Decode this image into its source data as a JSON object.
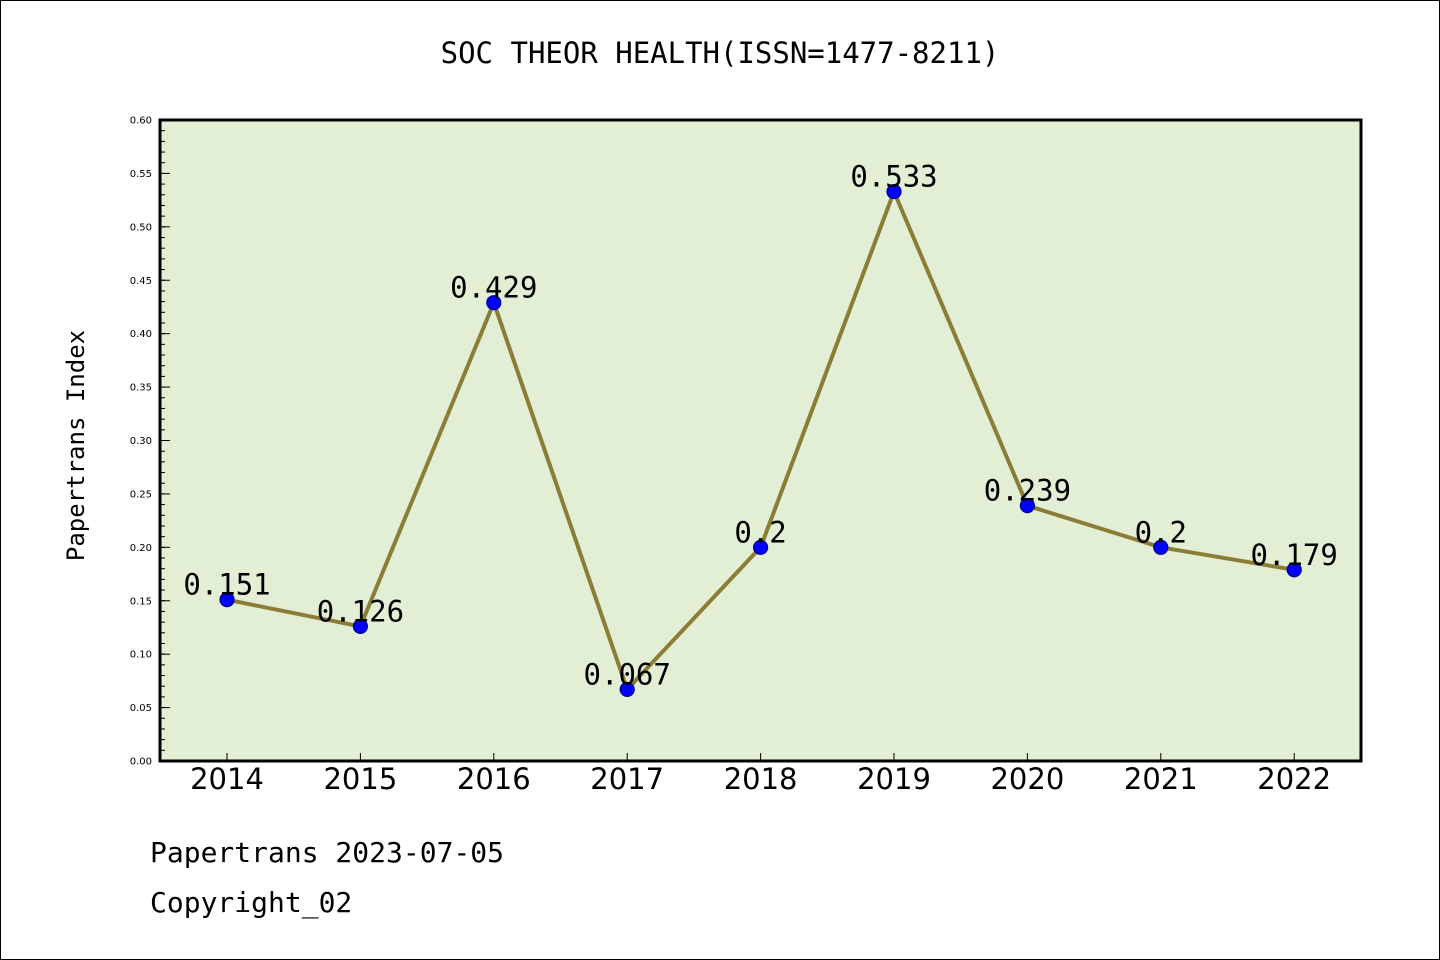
{
  "chart_data": {
    "type": "line",
    "title": "SOC THEOR HEALTH(ISSN=1477-8211)",
    "xlabel": "",
    "ylabel": "Papertrans Index",
    "categories": [
      "2014",
      "2015",
      "2016",
      "2017",
      "2018",
      "2019",
      "2020",
      "2021",
      "2022"
    ],
    "values": [
      0.151,
      0.126,
      0.429,
      0.067,
      0.2,
      0.533,
      0.239,
      0.2,
      0.179
    ],
    "data_labels": [
      "0.151",
      "0.126",
      "0.429",
      "0.067",
      "0.2",
      "0.533",
      "0.239",
      "0.2",
      "0.179"
    ],
    "ylim": [
      0,
      0.6
    ],
    "yticks": [
      "0.00",
      "0.05",
      "0.10",
      "0.15",
      "0.20",
      "0.25",
      "0.30",
      "0.35",
      "0.40",
      "0.45",
      "0.50",
      "0.55",
      "0.60"
    ],
    "grid": false,
    "legend": "none",
    "colors": {
      "plot_background": "#e2efd5",
      "line": "#8b7d35",
      "marker": "#0000ff",
      "marker_edge": "#00008b"
    }
  },
  "footer": {
    "date_line": "Papertrans 2023-07-05",
    "copyright_line": "Copyright_02"
  }
}
